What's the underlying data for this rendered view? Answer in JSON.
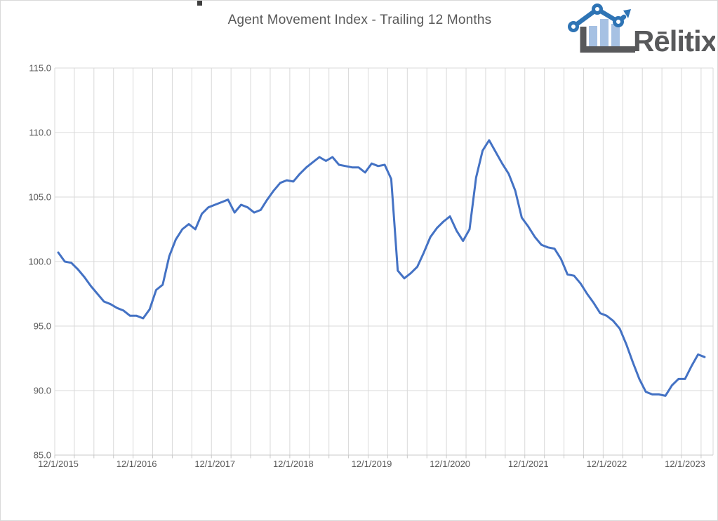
{
  "page": {
    "background": "#FFFFFF",
    "border_color": "#D9D9D9"
  },
  "header": {
    "title": "Agent Movement Index - Trailing 12 Months",
    "title_color": "#595959"
  },
  "logo": {
    "brand": "Rēlitix.",
    "text_color": "#58595B",
    "bar_color": "#A6C1E3",
    "line_color": "#2E74B5",
    "axis_color": "#58595B"
  },
  "chart_data": {
    "type": "line",
    "title": "Agent Movement Index - Trailing 12 Months",
    "series_name": "Agent Movement Index",
    "frequency": "monthly",
    "x": [
      "12/1/2015",
      "1/1/2016",
      "2/1/2016",
      "3/1/2016",
      "4/1/2016",
      "5/1/2016",
      "6/1/2016",
      "7/1/2016",
      "8/1/2016",
      "9/1/2016",
      "10/1/2016",
      "11/1/2016",
      "12/1/2016",
      "1/1/2017",
      "2/1/2017",
      "3/1/2017",
      "4/1/2017",
      "5/1/2017",
      "6/1/2017",
      "7/1/2017",
      "8/1/2017",
      "9/1/2017",
      "10/1/2017",
      "11/1/2017",
      "12/1/2017",
      "1/1/2018",
      "2/1/2018",
      "3/1/2018",
      "4/1/2018",
      "5/1/2018",
      "6/1/2018",
      "7/1/2018",
      "8/1/2018",
      "9/1/2018",
      "10/1/2018",
      "11/1/2018",
      "12/1/2018",
      "1/1/2019",
      "2/1/2019",
      "3/1/2019",
      "4/1/2019",
      "5/1/2019",
      "6/1/2019",
      "7/1/2019",
      "8/1/2019",
      "9/1/2019",
      "10/1/2019",
      "11/1/2019",
      "12/1/2019",
      "1/1/2020",
      "2/1/2020",
      "3/1/2020",
      "4/1/2020",
      "5/1/2020",
      "6/1/2020",
      "7/1/2020",
      "8/1/2020",
      "9/1/2020",
      "10/1/2020",
      "11/1/2020",
      "12/1/2020",
      "1/1/2021",
      "2/1/2021",
      "3/1/2021",
      "4/1/2021",
      "5/1/2021",
      "6/1/2021",
      "7/1/2021",
      "8/1/2021",
      "9/1/2021",
      "10/1/2021",
      "11/1/2021",
      "12/1/2021",
      "1/1/2022",
      "2/1/2022",
      "3/1/2022",
      "4/1/2022",
      "5/1/2022",
      "6/1/2022",
      "7/1/2022",
      "8/1/2022",
      "9/1/2022",
      "10/1/2022",
      "11/1/2022",
      "12/1/2022",
      "1/1/2023",
      "2/1/2023",
      "3/1/2023",
      "4/1/2023",
      "5/1/2023",
      "6/1/2023",
      "7/1/2023",
      "8/1/2023",
      "9/1/2023",
      "10/1/2023",
      "11/1/2023",
      "12/1/2023",
      "1/1/2024",
      "2/1/2024",
      "3/1/2024"
    ],
    "values": [
      100.7,
      100.0,
      99.9,
      99.4,
      98.8,
      98.1,
      97.5,
      96.9,
      96.7,
      96.4,
      96.2,
      95.8,
      95.8,
      95.6,
      96.3,
      97.8,
      98.2,
      100.4,
      101.7,
      102.5,
      102.9,
      102.5,
      103.7,
      104.2,
      104.4,
      104.6,
      104.8,
      103.8,
      104.4,
      104.2,
      103.8,
      104.0,
      104.8,
      105.5,
      106.1,
      106.3,
      106.2,
      106.8,
      107.3,
      107.7,
      108.1,
      107.8,
      108.1,
      107.5,
      107.4,
      107.3,
      107.3,
      106.9,
      107.6,
      107.4,
      107.5,
      106.4,
      99.3,
      98.7,
      99.1,
      99.6,
      100.7,
      101.9,
      102.6,
      103.1,
      103.5,
      102.4,
      101.6,
      102.5,
      106.5,
      108.6,
      109.4,
      108.5,
      107.6,
      106.8,
      105.5,
      103.4,
      102.7,
      101.9,
      101.3,
      101.1,
      101.0,
      100.2,
      99.0,
      98.9,
      98.3,
      97.5,
      96.8,
      96.0,
      95.8,
      95.4,
      94.8,
      93.6,
      92.2,
      90.9,
      89.9,
      89.7,
      89.7,
      89.6,
      90.4,
      90.9,
      90.9,
      91.9,
      92.8,
      92.6
    ],
    "x_tick_labels": [
      "12/1/2015",
      "12/1/2016",
      "12/1/2017",
      "12/1/2018",
      "12/1/2019",
      "12/1/2020",
      "12/1/2021",
      "12/1/2022",
      "12/1/2023"
    ],
    "y_tick_labels": [
      "115.0",
      "110.0",
      "105.0",
      "100.0",
      "95.0",
      "90.0",
      "85.0"
    ],
    "ylim": [
      85,
      115
    ],
    "grid": true,
    "gridline_interval_x": "quarterly",
    "gridline_color": "#D9D9D9",
    "axis_line_color": "#C8C8C8",
    "axis_label_color": "#595959",
    "line_color": "#4472C4",
    "line_width": 3,
    "legend": "none"
  }
}
